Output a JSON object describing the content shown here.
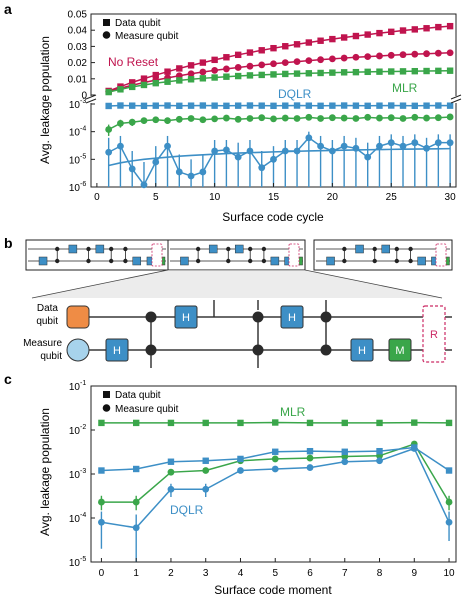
{
  "panels": {
    "a": "a",
    "b": "b",
    "c": "c"
  },
  "colors": {
    "no_reset": "#c0144e",
    "mlr": "#3aa64a",
    "dqlr": "#3d8fc6",
    "data_qubit_box": "#3d8fc6",
    "measure_circle": "#a7d3ec",
    "data_circle": "#ef8c45",
    "m_box": "#3aa64a",
    "reset_box": "#cc2a65",
    "gate": "#2b2b2b"
  },
  "chart_data": [
    {
      "panel": "a",
      "type": "line",
      "xlabel": "Surface code cycle",
      "ylabel": "Avg. leakage population",
      "xticks": [
        0,
        5,
        10,
        15,
        20,
        25,
        30
      ],
      "xlim": [
        -0.5,
        30.5
      ],
      "upper": {
        "scale": "linear",
        "ylim": [
          0,
          0.05
        ],
        "ticks": [
          "0",
          "0.01",
          "0.02",
          "0.03",
          "0.04",
          "0.05"
        ],
        "tick_values": [
          0,
          0.01,
          0.02,
          0.03,
          0.04,
          0.05
        ]
      },
      "lower": {
        "scale": "log",
        "ylim": [
          1e-06,
          0.001
        ],
        "ticks": [
          "10",
          "10",
          "10",
          "10"
        ],
        "tick_exps": [
          "-6",
          "-5",
          "-4",
          "-3"
        ],
        "tick_values": [
          1e-06,
          1e-05,
          0.0001,
          0.001
        ]
      },
      "legend": {
        "position": "top-left",
        "entries": [
          {
            "label": "Data qubit",
            "marker": "square"
          },
          {
            "label": "Measure qubit",
            "marker": "circle"
          }
        ]
      },
      "annotations": [
        {
          "text": "No Reset",
          "color_key": "no_reset"
        },
        {
          "text": "DQLR",
          "color_key": "dqlr"
        },
        {
          "text": "MLR",
          "color_key": "mlr"
        }
      ],
      "x": [
        1,
        2,
        3,
        4,
        5,
        6,
        7,
        8,
        9,
        10,
        11,
        12,
        13,
        14,
        15,
        16,
        17,
        18,
        19,
        20,
        21,
        22,
        23,
        24,
        25,
        26,
        27,
        28,
        29,
        30
      ],
      "series": [
        {
          "name": "No Reset",
          "qubit": "data",
          "axis": "upper",
          "color_key": "no_reset",
          "values": [
            0.0025,
            0.0052,
            0.0078,
            0.0101,
            0.0123,
            0.0144,
            0.0164,
            0.0183,
            0.02,
            0.0217,
            0.0233,
            0.0248,
            0.0262,
            0.0276,
            0.0289,
            0.0301,
            0.0313,
            0.0324,
            0.0335,
            0.0345,
            0.0355,
            0.0364,
            0.0373,
            0.0382,
            0.039,
            0.0398,
            0.0405,
            0.0412,
            0.0419,
            0.0425
          ]
        },
        {
          "name": "No Reset",
          "qubit": "measure",
          "axis": "upper",
          "color_key": "no_reset",
          "values": [
            0.0022,
            0.0042,
            0.006,
            0.0077,
            0.0092,
            0.0106,
            0.0119,
            0.0131,
            0.0142,
            0.0152,
            0.0161,
            0.017,
            0.0178,
            0.0186,
            0.0193,
            0.02,
            0.0206,
            0.0212,
            0.0218,
            0.0223,
            0.0228,
            0.0233,
            0.0237,
            0.0241,
            0.0245,
            0.0249,
            0.0252,
            0.0255,
            0.0258,
            0.0261
          ]
        },
        {
          "name": "MLR",
          "qubit": "data",
          "axis": "upper",
          "color_key": "mlr",
          "values": [
            0.0018,
            0.0035,
            0.005,
            0.0062,
            0.0073,
            0.0082,
            0.009,
            0.0097,
            0.0103,
            0.0108,
            0.0113,
            0.0117,
            0.0121,
            0.0124,
            0.0127,
            0.013,
            0.0132,
            0.0134,
            0.0136,
            0.0138,
            0.014,
            0.0141,
            0.0143,
            0.0144,
            0.0145,
            0.0146,
            0.0147,
            0.0148,
            0.0149,
            0.015
          ]
        },
        {
          "name": "DQLR",
          "qubit": "data",
          "axis": "lower",
          "color_key": "dqlr",
          "values": [
            0.00085,
            0.00088,
            0.00087,
            0.00086,
            0.00087,
            0.00088,
            0.00086,
            0.00087,
            0.00088,
            0.00087,
            0.00086,
            0.00087,
            0.00088,
            0.00087,
            0.00086,
            0.00087,
            0.00088,
            0.00087,
            0.00086,
            0.00087,
            0.00088,
            0.00087,
            0.00086,
            0.00087,
            0.00088,
            0.00087,
            0.00086,
            0.00087,
            0.00088,
            0.00087
          ]
        },
        {
          "name": "MLR",
          "qubit": "measure",
          "axis": "lower",
          "color_key": "mlr",
          "values": [
            0.00012,
            0.0002,
            0.00022,
            0.00025,
            0.00027,
            0.00025,
            0.00028,
            0.0003,
            0.00027,
            0.00029,
            0.00031,
            0.00028,
            0.0003,
            0.00032,
            0.00029,
            0.00031,
            0.0003,
            0.00033,
            0.0003,
            0.00032,
            0.00031,
            0.0003,
            0.00033,
            0.00031,
            0.00032,
            0.0003,
            0.00033,
            0.00031,
            0.00032,
            0.00034
          ],
          "err_low": [
            7e-05,
            0.00014,
            0.00016,
            0.00019,
            0.00021,
            0.00019,
            0.00022,
            0.00024,
            0.00021,
            0.00023,
            0.00025,
            0.00022,
            0.00024,
            0.00026,
            0.00023,
            0.00025,
            0.00024,
            0.00027,
            0.00024,
            0.00026,
            0.00025,
            0.00024,
            0.00027,
            0.00025,
            0.00026,
            0.00024,
            0.00027,
            0.00025,
            0.00026,
            0.00028
          ],
          "err_high": [
            0.00018,
            0.00027,
            0.00029,
            0.00032,
            0.00034,
            0.00032,
            0.00035,
            0.00037,
            0.00034,
            0.00036,
            0.00038,
            0.00035,
            0.00037,
            0.00039,
            0.00036,
            0.00038,
            0.00037,
            0.0004,
            0.00037,
            0.00039,
            0.00038,
            0.00037,
            0.0004,
            0.00038,
            0.00039,
            0.00037,
            0.0004,
            0.00038,
            0.00039,
            0.00041
          ]
        },
        {
          "name": "DQLR",
          "qubit": "measure",
          "axis": "lower",
          "color_key": "dqlr",
          "values": [
            1.8e-05,
            3e-05,
            4.5e-06,
            1.2e-06,
            8e-06,
            3e-05,
            3.5e-06,
            2.5e-06,
            3.5e-06,
            2e-05,
            2.2e-05,
            1.2e-05,
            2e-05,
            5e-06,
            1e-05,
            2e-05,
            2e-05,
            6e-05,
            3e-05,
            2e-05,
            3e-05,
            2.5e-05,
            1.2e-05,
            3e-05,
            4e-05,
            3e-05,
            4e-05,
            2.5e-05,
            4e-05,
            4e-05
          ],
          "err_low": [
            1e-06,
            1e-06,
            1e-06,
            1e-06,
            1e-06,
            1e-06,
            1e-06,
            1e-06,
            1e-06,
            1e-06,
            1e-06,
            1e-06,
            1e-06,
            1e-06,
            1e-06,
            1e-06,
            1e-06,
            1e-06,
            1e-06,
            1e-06,
            1e-06,
            1e-06,
            1e-06,
            1e-06,
            1e-06,
            1e-06,
            1e-06,
            1e-06,
            1e-06,
            1e-06
          ],
          "err_high": [
            6e-05,
            7e-05,
            2e-05,
            8e-06,
            3e-05,
            7e-05,
            1.5e-05,
            1e-05,
            1.5e-05,
            5e-05,
            5e-05,
            4e-05,
            5e-05,
            2e-05,
            3e-05,
            5e-05,
            5e-05,
            0.0001,
            7e-05,
            5e-05,
            7e-05,
            6e-05,
            4e-05,
            7e-05,
            8e-05,
            7e-05,
            8e-05,
            6e-05,
            8e-05,
            8e-05
          ]
        },
        {
          "name": "DQLR fit",
          "qubit": "measure",
          "axis": "lower",
          "color_key": "dqlr",
          "style": "line",
          "values": [
            6e-06,
            7.5e-06,
            8.8e-06,
            1e-05,
            1.1e-05,
            1.2e-05,
            1.3e-05,
            1.38e-05,
            1.46e-05,
            1.54e-05,
            1.61e-05,
            1.68e-05,
            1.74e-05,
            1.8e-05,
            1.86e-05,
            1.91e-05,
            1.96e-05,
            2.01e-05,
            2.06e-05,
            2.1e-05,
            2.14e-05,
            2.18e-05,
            2.22e-05,
            2.26e-05,
            2.29e-05,
            2.32e-05,
            2.35e-05,
            2.38e-05,
            2.41e-05,
            2.44e-05
          ]
        }
      ]
    },
    {
      "panel": "c",
      "type": "line",
      "scale": "log",
      "xlabel": "Surface code moment",
      "ylabel": "Avg. leakage population",
      "xticks": [
        0,
        1,
        2,
        3,
        4,
        5,
        6,
        7,
        8,
        9,
        10
      ],
      "xlim": [
        -0.3,
        10.2
      ],
      "ylim": [
        1e-05,
        0.1
      ],
      "yticks": [
        "10",
        "10",
        "10",
        "10",
        "10"
      ],
      "ytick_exps": [
        "-5",
        "-4",
        "-3",
        "-2",
        "-1"
      ],
      "ytick_values": [
        1e-05,
        0.0001,
        0.001,
        0.01,
        0.1
      ],
      "legend": {
        "position": "top-left",
        "entries": [
          {
            "label": "Data qubit",
            "marker": "square"
          },
          {
            "label": "Measure qubit",
            "marker": "circle"
          }
        ]
      },
      "annotations": [
        {
          "text": "MLR",
          "color_key": "mlr"
        },
        {
          "text": "DQLR",
          "color_key": "dqlr"
        }
      ],
      "x": [
        0,
        1,
        2,
        3,
        4,
        5,
        6,
        7,
        8,
        9,
        10
      ],
      "series": [
        {
          "name": "MLR",
          "qubit": "data",
          "color_key": "mlr",
          "values": [
            0.0145,
            0.0145,
            0.0145,
            0.0145,
            0.0145,
            0.0148,
            0.0145,
            0.0145,
            0.0145,
            0.0147,
            0.0145
          ]
        },
        {
          "name": "MLR",
          "qubit": "measure",
          "color_key": "mlr",
          "values": [
            0.00023,
            0.00023,
            0.0011,
            0.0012,
            0.002,
            0.0022,
            0.0023,
            0.0025,
            0.0026,
            0.0048,
            0.00023
          ],
          "err_low": [
            0.00015,
            0.00015,
            0.0011,
            0.0012,
            0.002,
            0.0022,
            0.0023,
            0.0025,
            0.0026,
            0.0048,
            0.00015
          ],
          "err_high": [
            0.00032,
            0.00032,
            0.0011,
            0.0012,
            0.002,
            0.0022,
            0.0023,
            0.0025,
            0.0026,
            0.0048,
            0.00032
          ]
        },
        {
          "name": "DQLR",
          "qubit": "data",
          "color_key": "dqlr",
          "values": [
            0.0012,
            0.0013,
            0.0019,
            0.002,
            0.0022,
            0.0032,
            0.0033,
            0.0032,
            0.0033,
            0.004,
            0.0012
          ]
        },
        {
          "name": "DQLR",
          "qubit": "measure",
          "color_key": "dqlr",
          "values": [
            8e-05,
            6e-05,
            0.00045,
            0.00045,
            0.0012,
            0.0013,
            0.0014,
            0.0019,
            0.002,
            0.0038,
            8e-05
          ],
          "err_low": [
            2e-05,
            1e-05,
            0.0003,
            0.0003,
            0.0012,
            0.0013,
            0.0014,
            0.0019,
            0.002,
            0.0038,
            3e-05
          ],
          "err_high": [
            0.00014,
            0.00012,
            0.0006,
            0.0006,
            0.0012,
            0.0013,
            0.0014,
            0.0019,
            0.002,
            0.0038,
            0.00014
          ]
        }
      ]
    }
  ],
  "circuit": {
    "data_qubit_label": "Data\nqubit",
    "measure_qubit_label": "Measure\nqubit",
    "gate_h": "H",
    "gate_m": "M",
    "gate_r": "R"
  }
}
